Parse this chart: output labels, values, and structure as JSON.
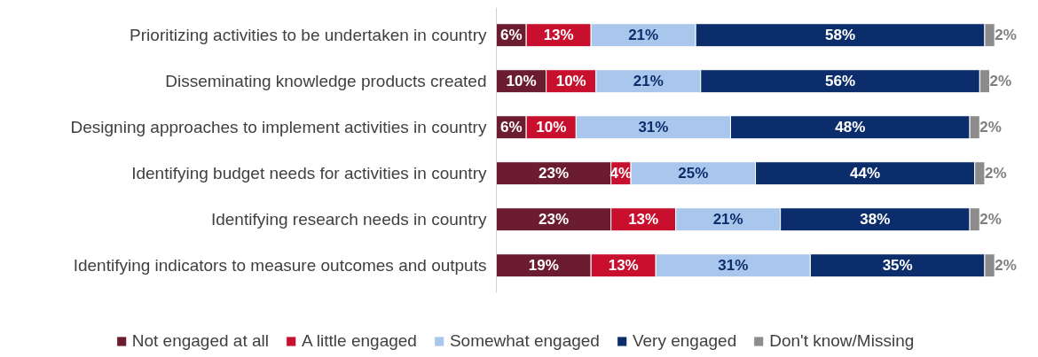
{
  "chart_data": {
    "type": "bar",
    "orientation": "horizontal",
    "stacked": true,
    "grid": false,
    "legend": "bottom",
    "tick_labels": "y",
    "categories": [
      "Prioritizing activities to be undertaken in country",
      "Disseminating knowledge products created",
      "Designing approaches to implement activities in country",
      "Identifying budget needs for activities in country",
      "Identifying research needs in country",
      "Identifying indicators to measure outcomes and outputs"
    ],
    "series": [
      {
        "name": "Not engaged at all",
        "color": "#6b1d2f",
        "values": [
          6,
          10,
          6,
          23,
          23,
          19
        ],
        "value_labels": [
          "6%",
          "10%",
          "6%",
          "23%",
          "23%",
          "19%"
        ]
      },
      {
        "name": "A little engaged",
        "color": "#c8102e",
        "values": [
          13,
          10,
          10,
          4,
          13,
          13
        ],
        "value_labels": [
          "13%",
          "10%",
          "10%",
          "4%",
          "13%",
          "13%"
        ]
      },
      {
        "name": "Somewhat engaged",
        "color": "#a9c7ec",
        "values": [
          21,
          21,
          31,
          25,
          21,
          31
        ],
        "value_labels": [
          "21%",
          "21%",
          "31%",
          "25%",
          "21%",
          "31%"
        ]
      },
      {
        "name": "Very engaged",
        "color": "#0c2d6b",
        "values": [
          58,
          56,
          48,
          44,
          38,
          35
        ],
        "value_labels": [
          "58%",
          "56%",
          "48%",
          "44%",
          "38%",
          "35%"
        ]
      },
      {
        "name": "Don't know/Missing",
        "color": "#8c8c8c",
        "values": [
          2,
          2,
          2,
          2,
          2,
          2
        ],
        "value_labels": [
          "2%",
          "2%",
          "2%",
          "2%",
          "2%",
          "2%"
        ]
      }
    ]
  }
}
